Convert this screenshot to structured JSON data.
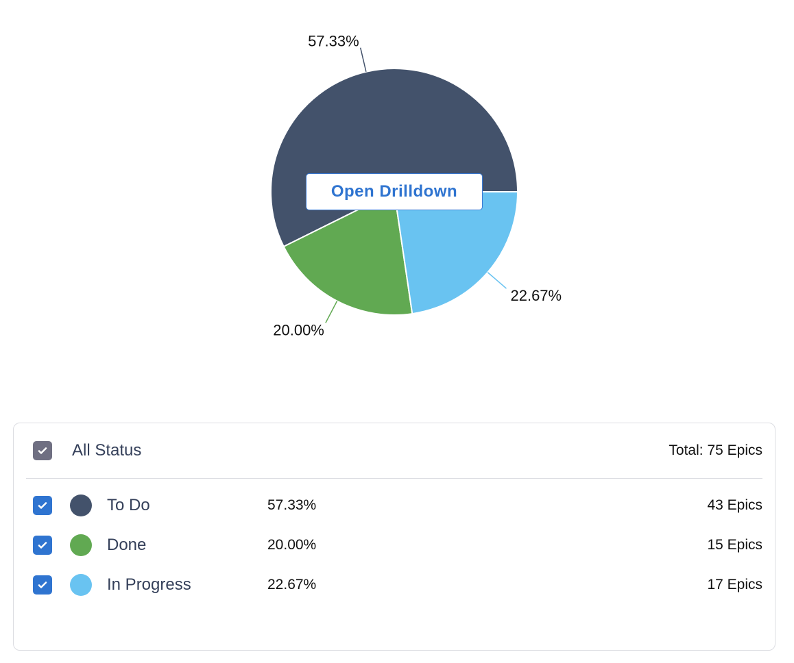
{
  "chart_data": {
    "type": "pie",
    "slices": [
      {
        "label": "To Do",
        "value": 57.33,
        "data_label": "57.33%",
        "color": "#43526b"
      },
      {
        "label": "Done",
        "value": 20.0,
        "data_label": "20.00%",
        "color": "#61a952"
      },
      {
        "label": "In Progress",
        "value": 22.67,
        "data_label": "22.67%",
        "color": "#69c3f1"
      }
    ],
    "start_angle": "3 o'clock, counter-clockwise"
  },
  "drilldown_label": "Open Drilldown",
  "legend": {
    "all_label": "All Status",
    "total": "Total: 75 Epics",
    "items": [
      {
        "name": "To Do",
        "percent": "57.33%",
        "count": "43 Epics",
        "color": "#43526b",
        "checked": true
      },
      {
        "name": "Done",
        "percent": "20.00%",
        "count": "15 Epics",
        "color": "#61a952",
        "checked": true
      },
      {
        "name": "In Progress",
        "percent": "22.67%",
        "count": "17 Epics",
        "color": "#69c3f1",
        "checked": true
      }
    ]
  }
}
